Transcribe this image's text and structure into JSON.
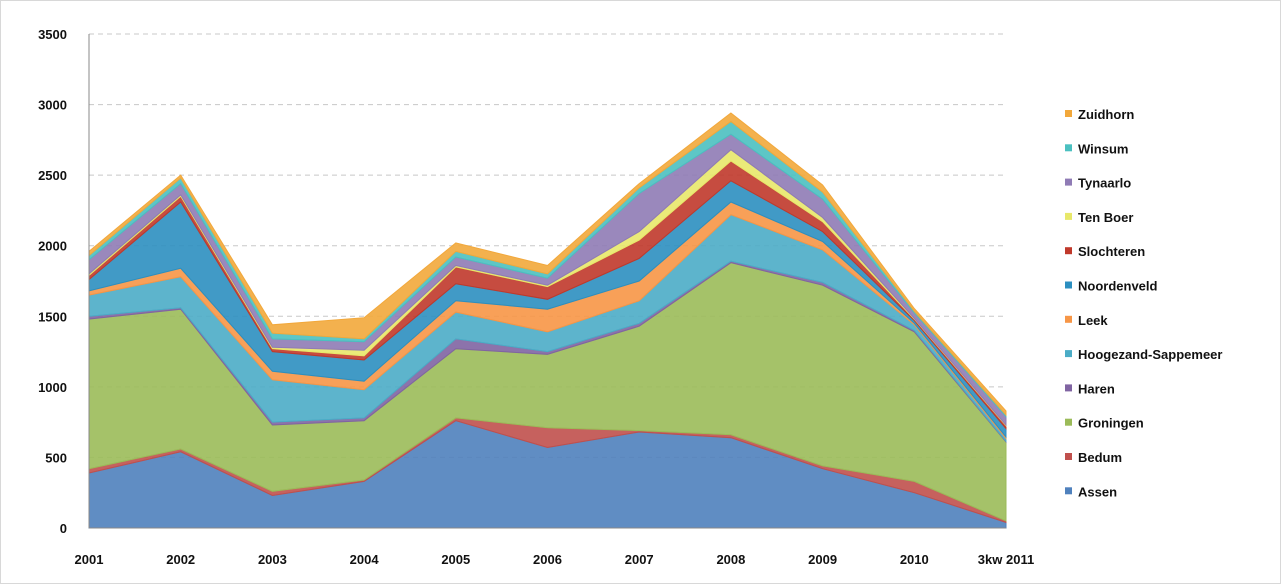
{
  "chart_data": {
    "type": "area",
    "stacked": true,
    "title": "",
    "xlabel": "",
    "ylabel": "",
    "categories": [
      "2001",
      "2002",
      "2003",
      "2004",
      "2005",
      "2006",
      "2007",
      "2008",
      "2009",
      "2010",
      "3kw 2011"
    ],
    "ylim": [
      0,
      3500
    ],
    "yticks": [
      0,
      500,
      1000,
      1500,
      2000,
      2500,
      3000,
      3500
    ],
    "grid": true,
    "legend_position": "right",
    "series": [
      {
        "name": "Assen",
        "color": "#4f81bd",
        "values": [
          390,
          540,
          230,
          330,
          760,
          570,
          680,
          640,
          420,
          250,
          40
        ]
      },
      {
        "name": "Bedum",
        "color": "#c0504d",
        "values": [
          30,
          20,
          30,
          10,
          20,
          140,
          10,
          20,
          20,
          80,
          10
        ]
      },
      {
        "name": "Groningen",
        "color": "#9bbb59",
        "values": [
          1060,
          990,
          470,
          420,
          490,
          520,
          740,
          1220,
          1280,
          1060,
          560
        ]
      },
      {
        "name": "Haren",
        "color": "#8064a2",
        "values": [
          20,
          10,
          20,
          20,
          70,
          20,
          20,
          10,
          20,
          10,
          5
        ]
      },
      {
        "name": "Hoogezand-Sappemeer",
        "color": "#4bacc6",
        "values": [
          150,
          220,
          300,
          200,
          190,
          140,
          160,
          330,
          230,
          40,
          20
        ]
      },
      {
        "name": "Leek",
        "color": "#f79646",
        "values": [
          30,
          60,
          60,
          60,
          80,
          160,
          140,
          90,
          60,
          10,
          10
        ]
      },
      {
        "name": "Noordenveld",
        "color": "#2c8fc0",
        "values": [
          80,
          470,
          140,
          150,
          120,
          70,
          160,
          150,
          70,
          20,
          60
        ]
      },
      {
        "name": "Slochteren",
        "color": "#c0392b",
        "values": [
          30,
          40,
          20,
          30,
          120,
          90,
          130,
          140,
          70,
          10,
          20
        ]
      },
      {
        "name": "Ten Boer",
        "color": "#e8e86a",
        "values": [
          10,
          10,
          10,
          40,
          10,
          10,
          60,
          80,
          30,
          5,
          5
        ]
      },
      {
        "name": "Tynaarlo",
        "color": "#8f7bb5",
        "values": [
          100,
          80,
          60,
          60,
          60,
          50,
          270,
          110,
          130,
          40,
          60
        ]
      },
      {
        "name": "Winsum",
        "color": "#4bc0c0",
        "values": [
          30,
          40,
          40,
          20,
          40,
          30,
          40,
          90,
          50,
          10,
          10
        ]
      },
      {
        "name": "Zuidhorn",
        "color": "#f2a83b",
        "values": [
          30,
          20,
          60,
          150,
          60,
          60,
          30,
          60,
          50,
          20,
          30
        ]
      }
    ]
  }
}
